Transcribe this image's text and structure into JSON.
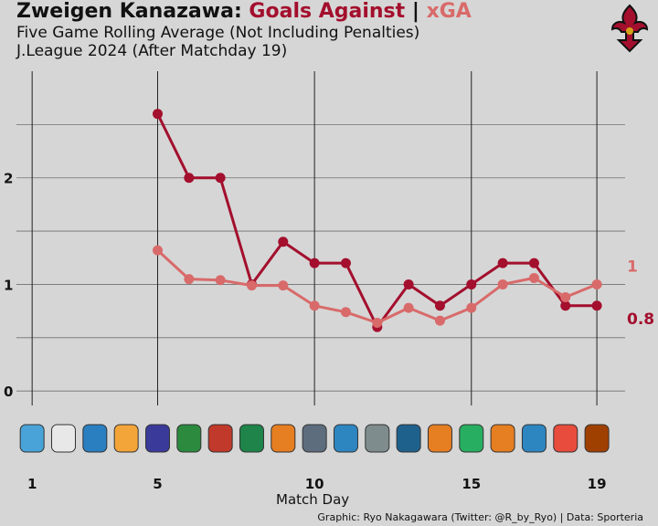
{
  "header": {
    "title_team": "Zweigen Kanazawa:",
    "title_ga": "Goals Against",
    "title_sep": "|",
    "title_xga": "xGA",
    "subtitle1": "Five Game Rolling Average (Not Including Penalties)",
    "subtitle2": "J.League 2024 (After Matchday 19)"
  },
  "caption": "Graphic: Ryo Nakagawara (Twitter: @R_by_Ryo) | Data: Sporteria",
  "colors": {
    "background": "#d6d6d6",
    "goals_against": "#a30f2d",
    "xga": "#d96a6a",
    "grid": "#444444"
  },
  "chart_data": {
    "type": "line",
    "xlabel": "Match Day",
    "ylabel": "",
    "xlim": [
      0.5,
      19.9
    ],
    "ylim": [
      -0.05,
      3.0
    ],
    "xticks": [
      1,
      5,
      10,
      15,
      19
    ],
    "yticks": [
      0,
      1,
      2
    ],
    "x": [
      5,
      6,
      7,
      8,
      9,
      10,
      11,
      12,
      13,
      14,
      15,
      16,
      17,
      18,
      19
    ],
    "series": [
      {
        "name": "Goals Against",
        "color": "#a30f2d",
        "values": [
          2.6,
          2.0,
          2.0,
          1.0,
          1.4,
          1.2,
          1.2,
          0.6,
          1.0,
          0.8,
          1.0,
          1.2,
          1.2,
          0.8,
          0.8
        ],
        "end_label": "0.8"
      },
      {
        "name": "xGA",
        "color": "#d96a6a",
        "values": [
          1.32,
          1.05,
          1.04,
          0.99,
          0.99,
          0.8,
          0.74,
          0.64,
          0.78,
          0.66,
          0.78,
          1.0,
          1.06,
          0.88,
          1.0
        ],
        "end_label": "1"
      }
    ],
    "opponent_logos": [
      "opponent-1",
      "opponent-2",
      "opponent-3",
      "opponent-4",
      "opponent-5",
      "opponent-6",
      "opponent-7",
      "opponent-8",
      "opponent-9",
      "opponent-10",
      "opponent-11",
      "opponent-12",
      "opponent-13",
      "opponent-14",
      "opponent-15",
      "opponent-16",
      "opponent-17",
      "opponent-18",
      "opponent-19"
    ]
  }
}
